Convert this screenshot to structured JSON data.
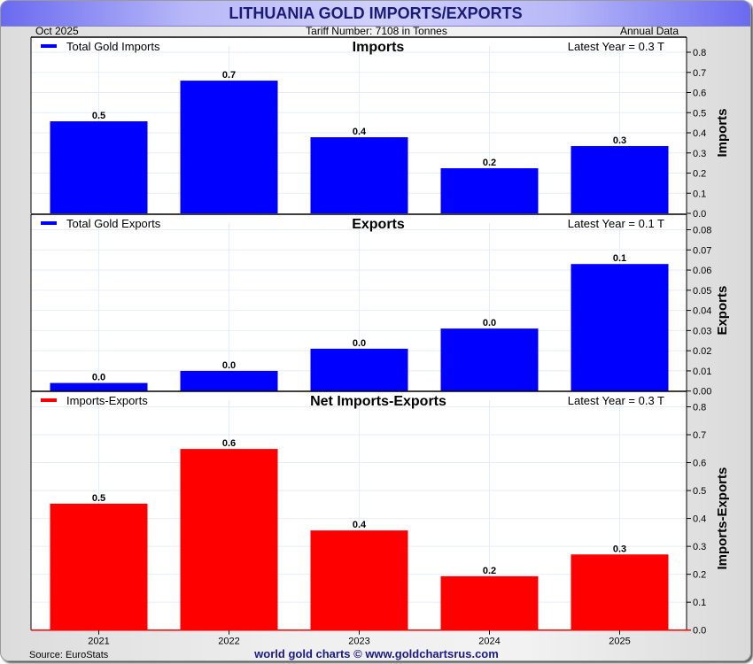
{
  "header": {
    "title": "LITHUANIA GOLD IMPORTS/EXPORTS",
    "date": "Oct  2025",
    "tariff": "Tariff Number: 7108 in Tonnes",
    "frequency": "Annual Data"
  },
  "footer": {
    "source": "Source: EuroStats",
    "credit": "world gold charts © www.goldchartsrus.com"
  },
  "chart_data": [
    {
      "type": "bar",
      "title": "Imports",
      "legend": "Total Gold Imports",
      "legend_position": "top-left",
      "latest": "Latest Year = 0.3 T",
      "ylabel": "Imports",
      "color": "#0000ff",
      "categories": [
        "2021",
        "2022",
        "2023",
        "2024",
        "2025"
      ],
      "values": [
        0.457,
        0.659,
        0.378,
        0.224,
        0.334
      ],
      "data_labels": [
        "0.5",
        "0.7",
        "0.4",
        "0.2",
        "0.3"
      ],
      "ylim": [
        0,
        0.8
      ],
      "yticks": [
        "0.0",
        "0.1",
        "0.2",
        "0.3",
        "0.4",
        "0.5",
        "0.6",
        "0.7",
        "0.8"
      ],
      "grid": true
    },
    {
      "type": "bar",
      "title": "Exports",
      "legend": "Total Gold Exports",
      "legend_position": "top-left",
      "latest": "Latest Year = 0.1 T",
      "ylabel": "Exports",
      "color": "#0000ff",
      "categories": [
        "2021",
        "2022",
        "2023",
        "2024",
        "2025"
      ],
      "values": [
        0.004,
        0.01,
        0.021,
        0.031,
        0.063
      ],
      "data_labels": [
        "0.0",
        "0.0",
        "0.0",
        "0.0",
        "0.1"
      ],
      "ylim": [
        0,
        0.08
      ],
      "yticks": [
        "0.00",
        "0.01",
        "0.02",
        "0.03",
        "0.04",
        "0.05",
        "0.06",
        "0.07",
        "0.08"
      ],
      "grid": true
    },
    {
      "type": "bar",
      "title": "Net Imports-Exports",
      "legend": "Imports-Exports",
      "legend_position": "top-left",
      "latest": "Latest Year = 0.3 T",
      "ylabel": "Imports-Exports",
      "color": "#ff0000",
      "categories": [
        "2021",
        "2022",
        "2023",
        "2024",
        "2025"
      ],
      "values": [
        0.453,
        0.649,
        0.357,
        0.193,
        0.271
      ],
      "data_labels": [
        "0.5",
        "0.6",
        "0.4",
        "0.2",
        "0.3"
      ],
      "ylim": [
        0,
        0.8
      ],
      "yticks": [
        "0.0",
        "0.1",
        "0.2",
        "0.3",
        "0.4",
        "0.5",
        "0.6",
        "0.7",
        "0.8"
      ],
      "xticks": [
        "2021",
        "2022",
        "2023",
        "2024",
        "2025"
      ],
      "grid": true
    }
  ]
}
